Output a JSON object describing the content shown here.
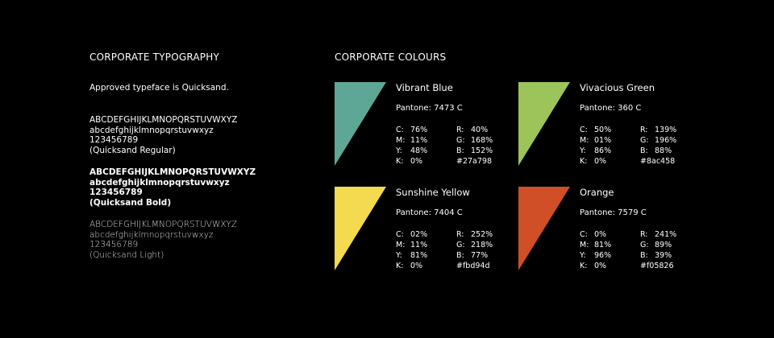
{
  "typography": {
    "heading": "CORPORATE TYPOGRAPHY",
    "note": "Approved typeface is Quicksand.",
    "specimens": [
      {
        "upper": "ABCDEFGHIJKLMNOPQRSTUVWXYZ",
        "lower": "abcdefghijklmnopqrstuvwxyz",
        "digits": "123456789",
        "name": "(Quicksand Regular)"
      },
      {
        "upper": "ABCDEFGHIJKLMNOPQRSTUVWXYZ",
        "lower": "abcdefghijklmnopqrstuvwxyz",
        "digits": "123456789",
        "name": "(Quicksand Bold)"
      },
      {
        "upper": "ABCDEFGHIJKLMNOPQRSTUVWXYZ",
        "lower": "abcdefghijklmnopqrstuvwxyz",
        "digits": "123456789",
        "name": "(Quicksand Light)"
      }
    ]
  },
  "colours": {
    "heading": "CORPORATE COLOURS",
    "swatches": [
      {
        "name": "Vibrant Blue",
        "color": "#5ea797",
        "pantone": "Pantone: 7473 C",
        "c": "76%",
        "m": "11%",
        "y": "48%",
        "k": "0%",
        "r": "40%",
        "g": "168%",
        "b": "152%",
        "hex": "#27a798"
      },
      {
        "name": "Vivacious Green",
        "color": "#9dc45a",
        "pantone": "Pantone: 360 C",
        "c": "50%",
        "m": "01%",
        "y": "86%",
        "k": "0%",
        "r": "139%",
        "g": "196%",
        "b": "88%",
        "hex": "#8ac458"
      },
      {
        "name": "Sunshine Yellow",
        "color": "#f4da4e",
        "pantone": "Pantone: 7404 C",
        "c": "02%",
        "m": "11%",
        "y": "81%",
        "k": "0%",
        "r": "252%",
        "g": "218%",
        "b": "77%",
        "hex": "#fbd94d"
      },
      {
        "name": "Orange",
        "color": "#d04f26",
        "pantone": "Pantone: 7579 C",
        "c": "0%",
        "m": "81%",
        "y": "96%",
        "k": "0%",
        "r": "241%",
        "g": "89%",
        "b": "39%",
        "hex": "#f05826"
      }
    ]
  }
}
